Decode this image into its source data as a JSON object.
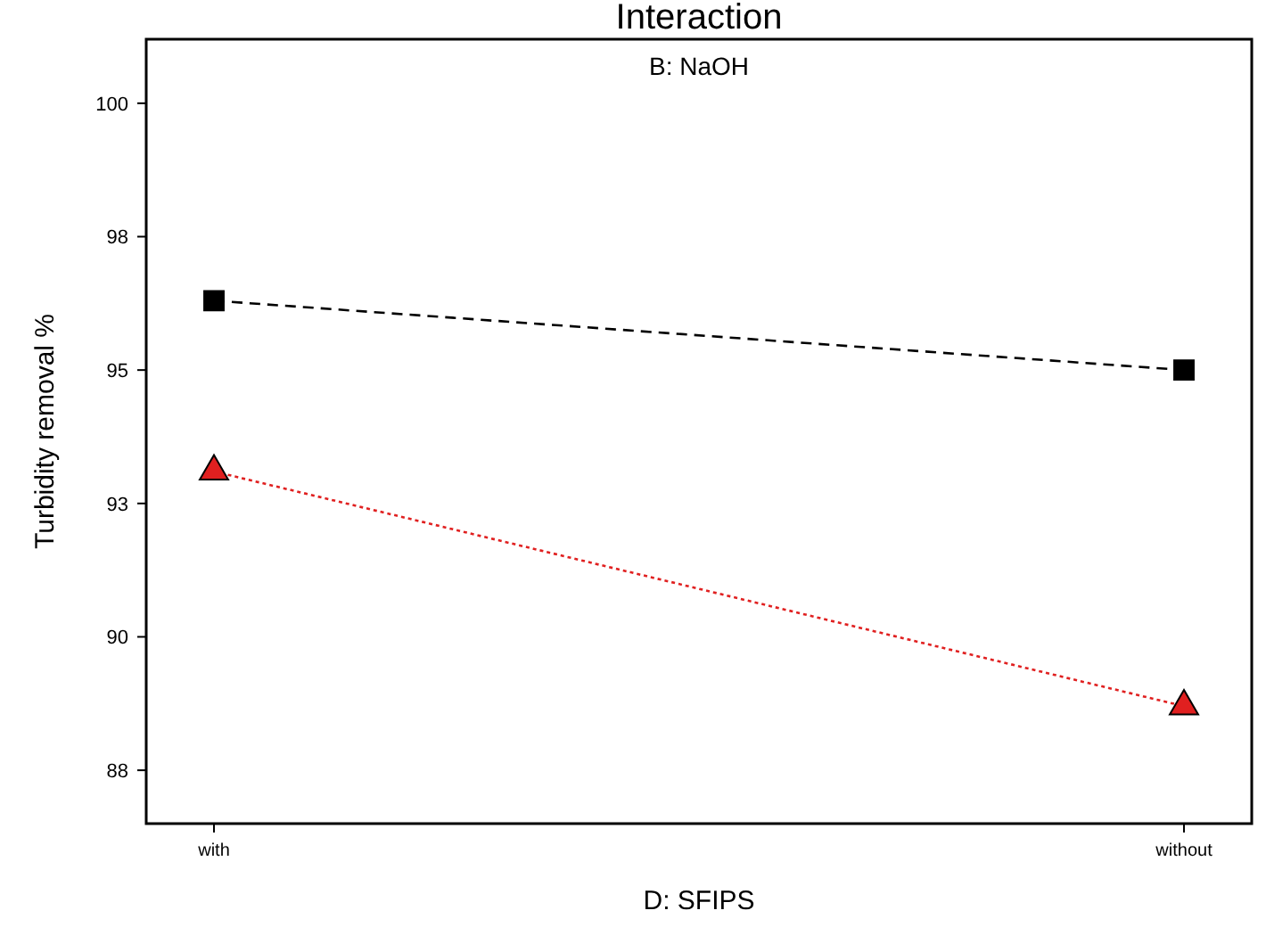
{
  "chart_data": {
    "type": "line",
    "title": "Interaction",
    "subtitle": "B: NaOH",
    "xlabel": "D: SFIPS",
    "ylabel": "Turbidity removal %",
    "categories": [
      "with",
      "without"
    ],
    "ylim": [
      86.5,
      101.2
    ],
    "yticks": [
      {
        "value": 87.5,
        "label": "88"
      },
      90,
      {
        "value": 92.5,
        "label": "93"
      },
      95,
      {
        "value": 97.5,
        "label": "98"
      },
      100
    ],
    "grid": false,
    "series": [
      {
        "color": "#000000",
        "values": [
          96.3,
          95.0
        ],
        "marker": "square",
        "line_style": "dashed"
      },
      {
        "color": "#e02020",
        "values": [
          93.1,
          88.7
        ],
        "marker": "triangle",
        "line_style": "dotted"
      }
    ]
  }
}
